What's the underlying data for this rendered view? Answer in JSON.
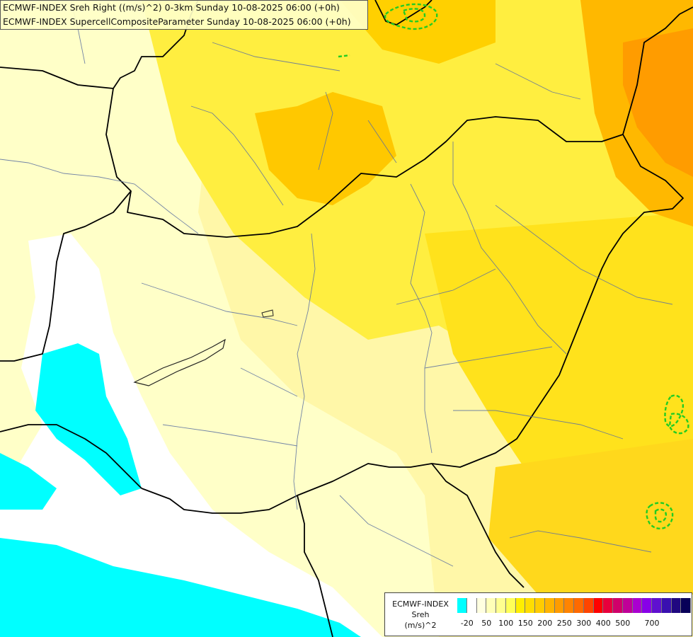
{
  "title": {
    "line1": "ECMWF-INDEX Sreh Right ((m/s)^2) 0-3km Sunday 10-08-2025 06:00 (+0h)",
    "line2": "ECMWF-INDEX SupercellCompositeParameter Sunday 10-08-2025 06:00 (+0h)"
  },
  "legend": {
    "model": "ECMWF-INDEX",
    "variable": "Sreh",
    "unit": "(m/s)^2",
    "colors": [
      "#00ffff",
      "#ffffff",
      "#ffffe0",
      "#ffffb8",
      "#ffff90",
      "#ffff58",
      "#ffee00",
      "#ffdd00",
      "#ffcc00",
      "#ffb400",
      "#ff9c00",
      "#ff8400",
      "#ff6a00",
      "#ff4400",
      "#ff0000",
      "#e8003c",
      "#d0006a",
      "#c00098",
      "#aa00d0",
      "#8800e8",
      "#6010d0",
      "#3a10b0",
      "#200880",
      "#080058"
    ],
    "ticks": [
      "-20",
      "50",
      "100",
      "150",
      "200",
      "250",
      "300",
      "400",
      "500",
      "700"
    ]
  }
}
